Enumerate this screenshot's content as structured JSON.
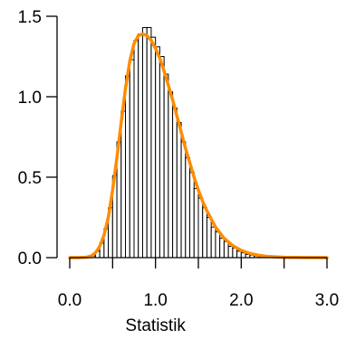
{
  "chart_data": {
    "type": "bar",
    "xlabel": "Statistik",
    "ylabel": "",
    "xlim": [
      0.0,
      3.0
    ],
    "ylim": [
      0.0,
      1.5
    ],
    "xticks": [
      0.0,
      0.5,
      1.0,
      1.5,
      2.0,
      2.5,
      3.0
    ],
    "xtick_labels": [
      "0.0",
      "1.0",
      "2.0",
      "3.0"
    ],
    "xtick_label_values": [
      0.0,
      1.0,
      2.0,
      3.0
    ],
    "yticks": [
      0.0,
      0.5,
      1.0,
      1.5
    ],
    "ytick_labels": [
      "0.0",
      "0.5",
      "1.0",
      "1.5"
    ],
    "histogram": {
      "bin_width": 0.05,
      "bin_starts": [
        0.25,
        0.3,
        0.35,
        0.4,
        0.45,
        0.5,
        0.55,
        0.6,
        0.65,
        0.7,
        0.75,
        0.8,
        0.85,
        0.9,
        0.95,
        1.0,
        1.05,
        1.1,
        1.15,
        1.2,
        1.25,
        1.3,
        1.35,
        1.4,
        1.45,
        1.5,
        1.55,
        1.6,
        1.65,
        1.7,
        1.75,
        1.8,
        1.85,
        1.9,
        1.95,
        2.0,
        2.05,
        2.1,
        2.15,
        2.2
      ],
      "density": [
        0.01,
        0.04,
        0.09,
        0.18,
        0.31,
        0.51,
        0.72,
        0.91,
        1.13,
        1.23,
        1.35,
        1.39,
        1.43,
        1.43,
        1.37,
        1.31,
        1.25,
        1.14,
        1.03,
        0.93,
        0.84,
        0.72,
        0.62,
        0.53,
        0.43,
        0.37,
        0.31,
        0.25,
        0.19,
        0.16,
        0.12,
        0.1,
        0.07,
        0.06,
        0.04,
        0.03,
        0.02,
        0.015,
        0.01,
        0.005
      ],
      "fill": "#ffffff",
      "stroke": "#000000"
    },
    "curve": {
      "color": "#ff8c00",
      "x": [
        0.0,
        0.1,
        0.2,
        0.25,
        0.3,
        0.35,
        0.4,
        0.45,
        0.5,
        0.55,
        0.6,
        0.65,
        0.7,
        0.75,
        0.8,
        0.85,
        0.9,
        0.95,
        1.0,
        1.05,
        1.1,
        1.15,
        1.2,
        1.25,
        1.3,
        1.35,
        1.4,
        1.45,
        1.5,
        1.55,
        1.6,
        1.65,
        1.7,
        1.8,
        1.9,
        2.0,
        2.1,
        2.2,
        2.3,
        2.5,
        2.7,
        3.0
      ],
      "y": [
        0.0,
        0.0,
        0.003,
        0.01,
        0.03,
        0.07,
        0.14,
        0.25,
        0.42,
        0.62,
        0.84,
        1.05,
        1.22,
        1.33,
        1.38,
        1.39,
        1.38,
        1.35,
        1.3,
        1.24,
        1.16,
        1.07,
        0.98,
        0.88,
        0.78,
        0.68,
        0.59,
        0.5,
        0.42,
        0.35,
        0.29,
        0.24,
        0.19,
        0.12,
        0.075,
        0.045,
        0.026,
        0.015,
        0.008,
        0.002,
        0.0005,
        0.0
      ]
    },
    "grid": false,
    "legend": "none"
  }
}
